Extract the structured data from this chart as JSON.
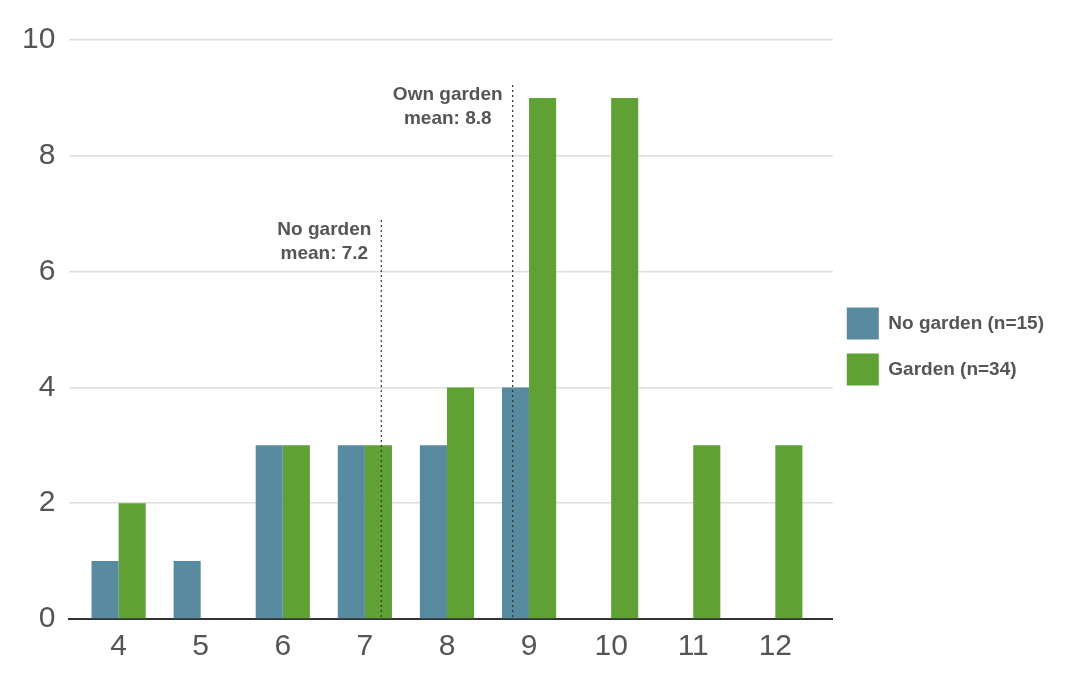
{
  "chart_data": {
    "type": "bar",
    "x": [
      4,
      5,
      6,
      7,
      8,
      9,
      10,
      11,
      12
    ],
    "series": [
      {
        "name": "No garden (n=15)",
        "color": "#588aa0",
        "values": [
          1,
          1,
          3,
          3,
          3,
          4,
          0,
          0,
          0
        ]
      },
      {
        "name": "Garden (n=34)",
        "color": "#5fa134",
        "values": [
          2,
          0,
          3,
          3,
          4,
          9,
          9,
          3,
          3
        ]
      }
    ],
    "xlim": [
      3.4,
      12.7
    ],
    "xticks": [
      4,
      5,
      6,
      7,
      8,
      9,
      10,
      11,
      12
    ],
    "ylim": [
      0,
      10
    ],
    "yticks": [
      0,
      2,
      4,
      6,
      8,
      10
    ],
    "grid": "y",
    "legend": "right",
    "ref_lines": [
      {
        "axis": "x",
        "value": 7.2,
        "label": "No garden mean: 7.2",
        "line_style": "dotted"
      },
      {
        "axis": "x",
        "value": 8.8,
        "label": "Own garden mean: 8.8",
        "line_style": "dotted"
      }
    ]
  }
}
